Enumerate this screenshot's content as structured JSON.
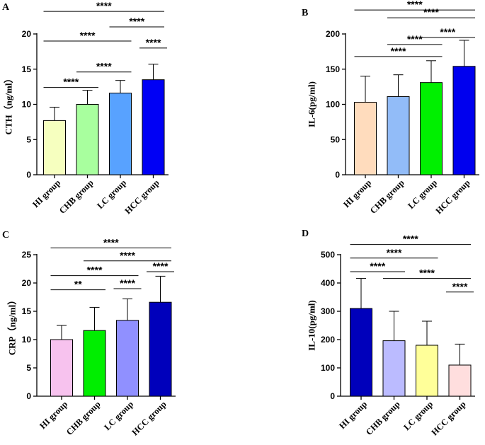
{
  "chart_data": [
    {
      "id": "A",
      "type": "bar",
      "letter": "A",
      "ylabel": "CTH（ng/ml）",
      "ylim": [
        0,
        20
      ],
      "yticks": [
        0,
        5,
        10,
        15,
        20
      ],
      "categories": [
        "HI group",
        "CHB group",
        "LC group",
        "HCC group"
      ],
      "values": [
        7.7,
        10.0,
        11.6,
        13.5
      ],
      "errors": [
        1.9,
        2.0,
        1.8,
        2.2
      ],
      "colors": [
        "#f6ffbf",
        "#a8ff9e",
        "#58a2ff",
        "#0000f5"
      ],
      "comparisons": [
        {
          "from": 0,
          "to": 3,
          "y": 23.2,
          "label": "****"
        },
        {
          "from": 2,
          "to": 3,
          "y": 21.0,
          "label": "****"
        },
        {
          "from": 0,
          "to": 2,
          "y": 19.0,
          "label": "****"
        },
        {
          "from": 3,
          "to": 3,
          "y": 18.0,
          "label": "****"
        },
        {
          "from": 1,
          "to": 2,
          "y": 14.6,
          "label": "****"
        },
        {
          "from": 0,
          "to": 1,
          "y": 12.4,
          "label": "****"
        }
      ]
    },
    {
      "id": "B",
      "type": "bar",
      "letter": "B",
      "ylabel": "IL-6(pg/ml)",
      "ylim": [
        0,
        200
      ],
      "yticks": [
        0,
        50,
        100,
        150,
        200
      ],
      "categories": [
        "HI group",
        "CHB group",
        "LC group",
        "HCC  group"
      ],
      "values": [
        103,
        111,
        131,
        154
      ],
      "errors": [
        37,
        31,
        31,
        37
      ],
      "colors": [
        "#ffdcbd",
        "#92bcf8",
        "#00f000",
        "#0000ee"
      ],
      "comparisons": [
        {
          "from": 0,
          "to": 3,
          "y": 234,
          "label": "****"
        },
        {
          "from": 1,
          "to": 3,
          "y": 223,
          "label": "****"
        },
        {
          "from": 2,
          "to": 3,
          "y": 195,
          "label": "****"
        },
        {
          "from": 1,
          "to": 2,
          "y": 185,
          "label": "****"
        },
        {
          "from": 0,
          "to": 2,
          "y": 168,
          "label": "****"
        }
      ]
    },
    {
      "id": "C",
      "type": "bar",
      "letter": "C",
      "ylabel": "CRP（ng/ml）",
      "ylim": [
        0,
        25
      ],
      "yticks": [
        0,
        5,
        10,
        15,
        20,
        25
      ],
      "categories": [
        "HI group",
        "CHB group",
        "LC group",
        "HCC group"
      ],
      "values": [
        10.0,
        11.6,
        13.4,
        16.6
      ],
      "errors": [
        2.5,
        4.1,
        3.8,
        4.6
      ],
      "colors": [
        "#f7c2ee",
        "#00ee00",
        "#9090ff",
        "#0000bb"
      ],
      "comparisons": [
        {
          "from": 0,
          "to": 3,
          "y": 26.2,
          "label": "****"
        },
        {
          "from": 1,
          "to": 3,
          "y": 23.9,
          "label": "****"
        },
        {
          "from": 3,
          "to": 3,
          "y": 22.0,
          "label": "****"
        },
        {
          "from": 0,
          "to": 2,
          "y": 21.3,
          "label": "****"
        },
        {
          "from": 2,
          "to": 2,
          "y": 19.0,
          "label": "****"
        },
        {
          "from": 0,
          "to": 1,
          "y": 18.8,
          "label": "**"
        }
      ]
    },
    {
      "id": "D",
      "type": "bar",
      "letter": "D",
      "ylabel": "IL-10(pg/ml)",
      "ylim": [
        0,
        500
      ],
      "yticks": [
        0,
        100,
        200,
        300,
        400,
        500
      ],
      "categories": [
        "HI group",
        "CHB group",
        "LC group",
        "HCC group"
      ],
      "values": [
        310,
        196,
        180,
        110
      ],
      "errors": [
        106,
        104,
        85,
        74
      ],
      "colors": [
        "#0000bb",
        "#bbbbff",
        "#ffff99",
        "#ffdede"
      ],
      "comparisons": [
        {
          "from": 0,
          "to": 3,
          "y": 536,
          "label": "****"
        },
        {
          "from": 0,
          "to": 2,
          "y": 488,
          "label": "****"
        },
        {
          "from": 0,
          "to": 1,
          "y": 440,
          "label": "****"
        },
        {
          "from": 1,
          "to": 3,
          "y": 416,
          "label": "****"
        },
        {
          "from": 3,
          "to": 3,
          "y": 368,
          "label": "****"
        }
      ]
    }
  ]
}
